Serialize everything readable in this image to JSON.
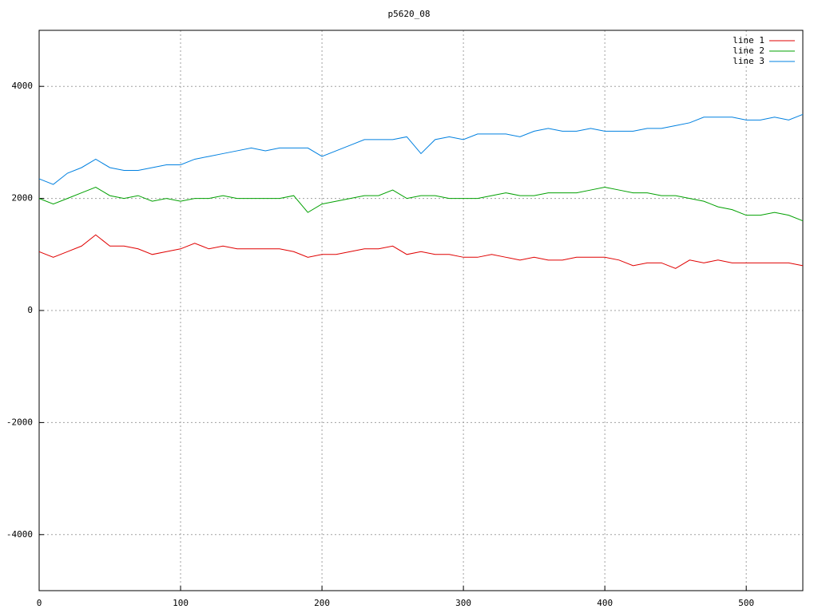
{
  "chart_data": {
    "type": "line",
    "title": "p5620_08",
    "x": [
      0,
      10,
      20,
      30,
      40,
      50,
      60,
      70,
      80,
      90,
      100,
      110,
      120,
      130,
      140,
      150,
      160,
      170,
      180,
      190,
      200,
      210,
      220,
      230,
      240,
      250,
      260,
      270,
      280,
      290,
      300,
      310,
      320,
      330,
      340,
      350,
      360,
      370,
      380,
      390,
      400,
      410,
      420,
      430,
      440,
      450,
      460,
      470,
      480,
      490,
      500,
      510,
      520,
      530,
      540
    ],
    "series": [
      {
        "name": "line 1",
        "color": "#e00000",
        "values": [
          1050,
          950,
          1050,
          1150,
          1350,
          1150,
          1150,
          1100,
          1000,
          1050,
          1100,
          1200,
          1100,
          1150,
          1100,
          1100,
          1100,
          1100,
          1050,
          950,
          1000,
          1000,
          1050,
          1100,
          1100,
          1150,
          1000,
          1050,
          1000,
          1000,
          950,
          950,
          1000,
          950,
          900,
          950,
          900,
          900,
          950,
          950,
          950,
          900,
          800,
          850,
          850,
          750,
          900,
          850,
          900,
          850,
          850,
          850,
          850,
          850,
          800
        ]
      },
      {
        "name": "line 2",
        "color": "#00a000",
        "values": [
          2000,
          1900,
          2000,
          2100,
          2200,
          2050,
          2000,
          2050,
          1950,
          2000,
          1950,
          2000,
          2000,
          2050,
          2000,
          2000,
          2000,
          2000,
          2050,
          1750,
          1900,
          1950,
          2000,
          2050,
          2050,
          2150,
          2000,
          2050,
          2050,
          2000,
          2000,
          2000,
          2050,
          2100,
          2050,
          2050,
          2100,
          2100,
          2100,
          2150,
          2200,
          2150,
          2100,
          2100,
          2050,
          2050,
          2000,
          1950,
          1850,
          1800,
          1700,
          1700,
          1750,
          1700,
          1600
        ]
      },
      {
        "name": "line 3",
        "color": "#0080e0",
        "values": [
          2350,
          2250,
          2450,
          2550,
          2700,
          2550,
          2500,
          2500,
          2550,
          2600,
          2600,
          2700,
          2750,
          2800,
          2850,
          2900,
          2850,
          2900,
          2900,
          2900,
          2750,
          2850,
          2950,
          3050,
          3050,
          3050,
          3100,
          2800,
          3050,
          3100,
          3050,
          3150,
          3150,
          3150,
          3100,
          3200,
          3250,
          3200,
          3200,
          3250,
          3200,
          3200,
          3200,
          3250,
          3250,
          3300,
          3350,
          3450,
          3450,
          3450,
          3400,
          3400,
          3450,
          3400,
          3500
        ]
      }
    ],
    "xlim": [
      0,
      540
    ],
    "ylim": [
      -5000,
      5000
    ],
    "xticks": [
      0,
      100,
      200,
      300,
      400,
      500
    ],
    "yticks": [
      -4000,
      -2000,
      0,
      2000,
      4000
    ],
    "grid": true,
    "legend": "top-right"
  }
}
